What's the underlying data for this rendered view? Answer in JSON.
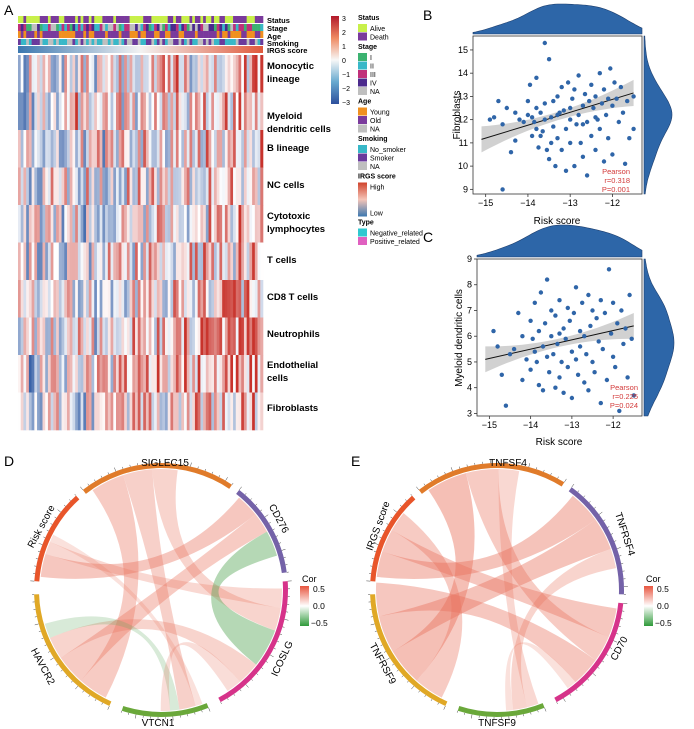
{
  "panel_labels": {
    "a": "A",
    "b": "B",
    "c": "C",
    "d": "D",
    "e": "E"
  },
  "heatmap": {
    "annotation_rows": [
      "Status",
      "Stage",
      "Age",
      "Smoking",
      "IRGS score"
    ],
    "cell_types": [
      "Monocytic lineage",
      "Myeloid dendritic cells",
      "B lineage",
      "NC cells",
      "Cytotoxic lymphocytes",
      "T cells",
      "CD8 T cells",
      "Neutrophils",
      "Endothelial cells",
      "Fibroblasts"
    ],
    "colorbar_ticks": [
      "3",
      "2",
      "1",
      "0",
      "−1",
      "−2",
      "−3"
    ]
  },
  "legend": {
    "groups": [
      {
        "title": "Status",
        "items": [
          {
            "label": "Alive",
            "color": "#c8f04a"
          },
          {
            "label": "Death",
            "color": "#7a3a9c"
          }
        ]
      },
      {
        "title": "Stage",
        "items": [
          {
            "label": "I",
            "color": "#3cb371"
          },
          {
            "label": "II",
            "color": "#38b8c8"
          },
          {
            "label": "III",
            "color": "#c0307a"
          },
          {
            "label": "IV",
            "color": "#4b2a8c"
          },
          {
            "label": "NA",
            "color": "#bfbfbf"
          }
        ]
      },
      {
        "title": "Age",
        "items": [
          {
            "label": "Young",
            "color": "#f09020"
          },
          {
            "label": "Old",
            "color": "#7a3a9c"
          },
          {
            "label": "NA",
            "color": "#bfbfbf"
          }
        ]
      },
      {
        "title": "Smoking",
        "items": [
          {
            "label": "No_smoker",
            "color": "#38b8c8"
          },
          {
            "label": "Smoker",
            "color": "#6a3a9c"
          },
          {
            "label": "NA",
            "color": "#bfbfbf"
          }
        ]
      },
      {
        "title": "IRGS score",
        "items": [
          {
            "label": "High",
            "color": "#d0432c"
          },
          {
            "label": "Low",
            "color": "#3c78b0"
          }
        ]
      },
      {
        "title": "Type",
        "items": [
          {
            "label": "Negative_related",
            "color": "#30c8d0"
          },
          {
            "label": "Positive_related",
            "color": "#e060c0"
          }
        ]
      }
    ]
  },
  "chart_data": [
    {
      "type": "heatmap",
      "panel": "A",
      "rows": [
        "Monocytic lineage",
        "Myeloid dendritic cells",
        "B lineage",
        "NC cells",
        "Cytotoxic lymphocytes",
        "T cells",
        "CD8 T cells",
        "Neutrophils",
        "Endothelial cells",
        "Fibroblasts"
      ],
      "value_range": [
        -3,
        3
      ],
      "colors": {
        "low": "#3a63a8",
        "mid": "#ffffff",
        "high": "#c8332c"
      }
    },
    {
      "type": "scatter",
      "panel": "B",
      "title": "",
      "xlabel": "Risk score",
      "ylabel": "Fibroblasts",
      "xlim": [
        -15.3,
        -11.3
      ],
      "ylim": [
        8.8,
        15.6
      ],
      "xticks": [
        "-15",
        "-14",
        "-13",
        "-12"
      ],
      "yticks": [
        "9",
        "10",
        "11",
        "12",
        "13",
        "14",
        "15"
      ],
      "regression": {
        "x": [
          -15.1,
          -11.5
        ],
        "y": [
          11.15,
          13.15
        ]
      },
      "stats": [
        "Pearson",
        "r=0.318",
        "P=0.001"
      ],
      "point_color": "#2f65a8",
      "points": [
        [
          -14.9,
          12.0
        ],
        [
          -14.8,
          12.1
        ],
        [
          -14.7,
          12.8
        ],
        [
          -14.6,
          11.8
        ],
        [
          -14.5,
          12.5
        ],
        [
          -14.6,
          9.0
        ],
        [
          -14.4,
          10.6
        ],
        [
          -14.3,
          11.1
        ],
        [
          -14.2,
          12.0
        ],
        [
          -14.1,
          11.9
        ],
        [
          -14.0,
          12.2
        ],
        [
          -14.0,
          12.8
        ],
        [
          -13.95,
          13.5
        ],
        [
          -13.9,
          12.1
        ],
        [
          -13.85,
          11.9
        ],
        [
          -13.8,
          13.8
        ],
        [
          -13.8,
          12.5
        ],
        [
          -13.75,
          10.8
        ],
        [
          -13.7,
          11.3
        ],
        [
          -13.7,
          12.3
        ],
        [
          -13.65,
          11.5
        ],
        [
          -13.6,
          12.7
        ],
        [
          -13.6,
          15.3
        ],
        [
          -13.55,
          10.7
        ],
        [
          -13.5,
          14.6
        ],
        [
          -13.5,
          10.3
        ],
        [
          -13.45,
          12.1
        ],
        [
          -13.4,
          12.8
        ],
        [
          -13.4,
          11.7
        ],
        [
          -13.35,
          10.0
        ],
        [
          -13.3,
          13.0
        ],
        [
          -13.3,
          11.2
        ],
        [
          -13.25,
          12.3
        ],
        [
          -13.2,
          10.7
        ],
        [
          -13.2,
          13.4
        ],
        [
          -13.15,
          12.4
        ],
        [
          -13.1,
          9.8
        ],
        [
          -13.1,
          11.6
        ],
        [
          -13.05,
          13.6
        ],
        [
          -13.0,
          12.0
        ],
        [
          -13.0,
          11.0
        ],
        [
          -12.95,
          12.9
        ],
        [
          -12.9,
          13.3
        ],
        [
          -12.9,
          10.0
        ],
        [
          -12.85,
          11.8
        ],
        [
          -12.8,
          12.2
        ],
        [
          -12.8,
          13.9
        ],
        [
          -12.75,
          11.0
        ],
        [
          -12.7,
          12.6
        ],
        [
          -12.7,
          10.4
        ],
        [
          -12.65,
          13.1
        ],
        [
          -12.6,
          11.9
        ],
        [
          -12.6,
          9.6
        ],
        [
          -12.55,
          12.8
        ],
        [
          -12.5,
          13.5
        ],
        [
          -12.5,
          11.3
        ],
        [
          -12.45,
          12.5
        ],
        [
          -12.4,
          10.7
        ],
        [
          -12.4,
          13.0
        ],
        [
          -12.35,
          12.0
        ],
        [
          -12.3,
          14.0
        ],
        [
          -12.3,
          11.6
        ],
        [
          -12.25,
          12.7
        ],
        [
          -12.2,
          10.2
        ],
        [
          -12.2,
          13.3
        ],
        [
          -12.15,
          12.2
        ],
        [
          -12.1,
          11.2
        ],
        [
          -12.05,
          14.2
        ],
        [
          -12.0,
          12.6
        ],
        [
          -12.0,
          10.5
        ],
        [
          -11.95,
          13.6
        ],
        [
          -11.9,
          12.9
        ],
        [
          -11.85,
          11.9
        ],
        [
          -11.8,
          13.4
        ],
        [
          -11.75,
          12.3
        ],
        [
          -11.7,
          10.1
        ],
        [
          -11.65,
          12.8
        ],
        [
          -11.6,
          11.2
        ],
        [
          -11.5,
          11.6
        ],
        [
          -11.5,
          13.0
        ],
        [
          -13.9,
          11.3
        ],
        [
          -13.6,
          12.0
        ],
        [
          -13.3,
          12.2
        ],
        [
          -13.0,
          12.5
        ],
        [
          -12.7,
          11.8
        ],
        [
          -12.4,
          12.1
        ],
        [
          -12.1,
          12.9
        ],
        [
          -14.3,
          12.3
        ],
        [
          -13.8,
          11.6
        ],
        [
          -13.45,
          11.0
        ]
      ]
    },
    {
      "type": "scatter",
      "panel": "C",
      "title": "",
      "xlabel": "Risk score",
      "ylabel": "Myeloid dendritic cells",
      "xlim": [
        -15.3,
        -11.3
      ],
      "ylim": [
        2.9,
        9.0
      ],
      "xticks": [
        "-15",
        "-14",
        "-13",
        "-12"
      ],
      "yticks": [
        "3",
        "4",
        "5",
        "6",
        "7",
        "8",
        "9"
      ],
      "regression": {
        "x": [
          -15.1,
          -11.5
        ],
        "y": [
          5.1,
          6.4
        ]
      },
      "stats": [
        "Pearson",
        "r=0.225",
        "P=0.024"
      ],
      "point_color": "#2f65a8",
      "points": [
        [
          -14.9,
          6.2
        ],
        [
          -14.8,
          5.6
        ],
        [
          -14.7,
          4.5
        ],
        [
          -14.6,
          3.3
        ],
        [
          -14.5,
          5.3
        ],
        [
          -14.4,
          5.5
        ],
        [
          -14.3,
          6.9
        ],
        [
          -14.2,
          4.3
        ],
        [
          -14.1,
          5.1
        ],
        [
          -14.0,
          6.6
        ],
        [
          -14.0,
          4.7
        ],
        [
          -13.95,
          5.9
        ],
        [
          -13.9,
          7.3
        ],
        [
          -13.85,
          5.0
        ],
        [
          -13.8,
          6.2
        ],
        [
          -13.8,
          4.1
        ],
        [
          -13.75,
          7.7
        ],
        [
          -13.7,
          5.6
        ],
        [
          -13.7,
          3.9
        ],
        [
          -13.65,
          6.5
        ],
        [
          -13.6,
          5.2
        ],
        [
          -13.6,
          8.2
        ],
        [
          -13.55,
          4.6
        ],
        [
          -13.5,
          6.0
        ],
        [
          -13.5,
          7.0
        ],
        [
          -13.45,
          5.3
        ],
        [
          -13.4,
          4.0
        ],
        [
          -13.4,
          6.8
        ],
        [
          -13.35,
          5.7
        ],
        [
          -13.3,
          4.4
        ],
        [
          -13.3,
          7.4
        ],
        [
          -13.25,
          5.0
        ],
        [
          -13.2,
          6.3
        ],
        [
          -13.2,
          3.8
        ],
        [
          -13.15,
          5.9
        ],
        [
          -13.1,
          7.1
        ],
        [
          -13.1,
          4.8
        ],
        [
          -13.05,
          6.6
        ],
        [
          -13.0,
          5.4
        ],
        [
          -13.0,
          3.6
        ],
        [
          -12.95,
          6.9
        ],
        [
          -12.9,
          5.1
        ],
        [
          -12.9,
          7.9
        ],
        [
          -12.85,
          4.5
        ],
        [
          -12.8,
          6.2
        ],
        [
          -12.8,
          5.6
        ],
        [
          -12.75,
          7.3
        ],
        [
          -12.7,
          4.2
        ],
        [
          -12.7,
          6.0
        ],
        [
          -12.65,
          5.3
        ],
        [
          -12.6,
          7.6
        ],
        [
          -12.6,
          3.9
        ],
        [
          -12.55,
          6.4
        ],
        [
          -12.5,
          5.0
        ],
        [
          -12.5,
          7.0
        ],
        [
          -12.45,
          4.6
        ],
        [
          -12.4,
          6.7
        ],
        [
          -12.35,
          5.8
        ],
        [
          -12.3,
          3.4
        ],
        [
          -12.3,
          7.4
        ],
        [
          -12.25,
          5.5
        ],
        [
          -12.2,
          6.9
        ],
        [
          -12.15,
          4.3
        ],
        [
          -12.1,
          8.6
        ],
        [
          -12.05,
          6.1
        ],
        [
          -12.0,
          5.2
        ],
        [
          -12.0,
          7.3
        ],
        [
          -11.95,
          4.8
        ],
        [
          -11.9,
          6.5
        ],
        [
          -11.85,
          3.1
        ],
        [
          -11.8,
          7.0
        ],
        [
          -11.75,
          5.7
        ],
        [
          -11.7,
          6.3
        ],
        [
          -11.65,
          4.4
        ],
        [
          -11.6,
          7.6
        ],
        [
          -11.55,
          5.9
        ],
        [
          -11.5,
          3.7
        ],
        [
          -14.2,
          6.0
        ],
        [
          -13.9,
          5.4
        ],
        [
          -13.3,
          6.1
        ]
      ]
    },
    {
      "type": "chord",
      "panel": "D",
      "sectors": [
        "SIGLEC15",
        "CD276",
        "ICOSLG",
        "VTCN1",
        "HAVCR2",
        "Risk score"
      ],
      "colorbar": {
        "title": "Cor",
        "ticks": [
          "0.5",
          "0.0",
          "−0.5"
        ]
      },
      "links": [
        {
          "from": "Risk score",
          "to": "CD276",
          "cor": 0.35
        },
        {
          "from": "Risk score",
          "to": "ICOSLG",
          "cor": 0.15
        },
        {
          "from": "Risk score",
          "to": "VTCN1",
          "cor": 0.05
        },
        {
          "from": "SIGLEC15",
          "to": "HAVCR2",
          "cor": 0.3
        },
        {
          "from": "SIGLEC15",
          "to": "VTCN1",
          "cor": 0.25
        },
        {
          "from": "SIGLEC15",
          "to": "ICOSLG",
          "cor": 0.2
        },
        {
          "from": "CD276",
          "to": "HAVCR2",
          "cor": 0.3
        },
        {
          "from": "CD276",
          "to": "ICOSLG",
          "cor": -0.45
        },
        {
          "from": "HAVCR2",
          "to": "ICOSLG",
          "cor": 0.2
        },
        {
          "from": "HAVCR2",
          "to": "VTCN1",
          "cor": -0.1
        },
        {
          "from": "VTCN1",
          "to": "ICOSLG",
          "cor": 0.1
        }
      ]
    },
    {
      "type": "chord",
      "panel": "E",
      "sectors": [
        "TNFSF4",
        "TNFRSF4",
        "CD70",
        "TNFSF9",
        "TNFRSF9",
        "IRGS score"
      ],
      "colorbar": {
        "title": "Cor",
        "ticks": [
          "0.5",
          "0.0",
          "−0.5"
        ]
      },
      "links": [
        {
          "from": "IRGS score",
          "to": "TNFRSF4",
          "cor": 0.4
        },
        {
          "from": "IRGS score",
          "to": "CD70",
          "cor": 0.35
        },
        {
          "from": "IRGS score",
          "to": "TNFRSF9",
          "cor": 0.3
        },
        {
          "from": "TNFSF4",
          "to": "TNFRSF9",
          "cor": 0.45
        },
        {
          "from": "TNFSF4",
          "to": "CD70",
          "cor": 0.3
        },
        {
          "from": "TNFSF4",
          "to": "TNFSF9",
          "cor": 0.15
        },
        {
          "from": "TNFRSF4",
          "to": "TNFRSF9",
          "cor": 0.4
        },
        {
          "from": "TNFRSF4",
          "to": "TNFSF9",
          "cor": 0.2
        },
        {
          "from": "TNFRSF9",
          "to": "CD70",
          "cor": 0.35
        },
        {
          "from": "TNFSF9",
          "to": "CD70",
          "cor": 0.05
        }
      ]
    }
  ]
}
